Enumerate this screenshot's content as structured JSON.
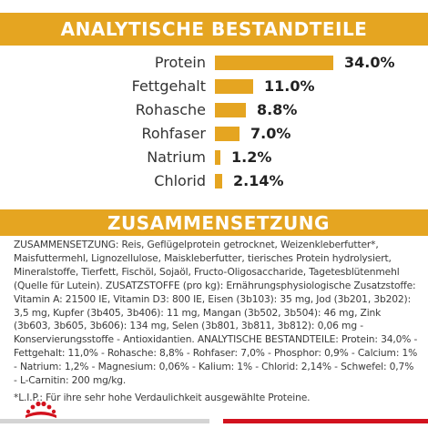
{
  "header": {
    "analysis_title": "ANALYTISCHE BESTANDTEILE",
    "composition_title": "ZUSAMMENSETZUNG"
  },
  "analysis": [
    {
      "label": "Protein",
      "value": "34.0%",
      "amount": 34.0
    },
    {
      "label": "Fettgehalt",
      "value": "11.0%",
      "amount": 11.0
    },
    {
      "label": "Rohasche",
      "value": "8.8%",
      "amount": 8.8
    },
    {
      "label": "Rohfaser",
      "value": "7.0%",
      "amount": 7.0
    },
    {
      "label": "Natrium",
      "value": "1.2%",
      "amount": 1.2
    },
    {
      "label": "Chlorid",
      "value": "2.14%",
      "amount": 2.14
    }
  ],
  "composition": {
    "paragraph": "ZUSAMMENSETZUNG: Reis, Geflügelprotein getrocknet, Weizenkleberfutter*, Maisfuttermehl, Lignozellulose, Maiskleberfutter, tierisches Protein hydrolysiert, Mineralstoffe, Tierfett, Fischöl, Sojaöl, Fructo-Oligosaccharide, Tagetesblütenmehl (Quelle für Lutein). ZUSATZSTOFFE (pro kg): Ernährungsphysiologische Zusatzstoffe: Vitamin A: 21500 IE, Vitamin D3: 800 IE, Eisen (3b103): 35 mg, Jod (3b201, 3b202): 3,5 mg, Kupfer (3b405, 3b406): 11 mg, Mangan (3b502, 3b504): 46 mg, Zink (3b603, 3b605, 3b606): 134 mg, Selen (3b801, 3b811, 3b812): 0,06 mg - Konservierungsstoffe - Antioxidantien. ANALYTISCHE BESTANDTEILE: Protein: 34,0% - Fettgehalt: 11,0% - Rohasche: 8,8% - Rohfaser: 7,0% - Phosphor: 0,9% - Calcium: 1% - Natrium: 1,2% - Magnesium: 0,06% - Kalium: 1% - Chlorid: 2,14% - Schwefel: 0,7% - L-Carnitin: 200 mg/kg.",
    "footnote": "*L.I.P.: Für ihre sehr hohe Verdaulichkeit ausgewählte Proteine."
  },
  "colors": {
    "accent": "#e5a521",
    "brand_red": "#d2121e",
    "footer_gray": "#d4d4d4"
  },
  "icons": {
    "brand_logo": "crown-logo-icon"
  }
}
